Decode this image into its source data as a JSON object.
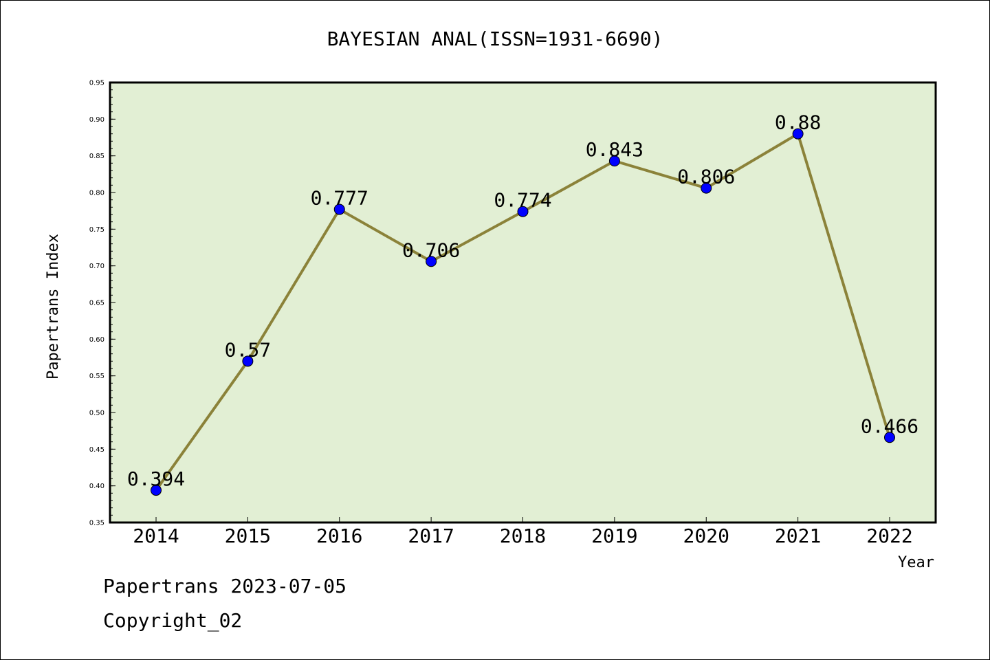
{
  "chart_data": {
    "type": "line",
    "title": "BAYESIAN ANAL(ISSN=1931-6690)",
    "xlabel": "Year",
    "ylabel": "Papertrans Index",
    "categories": [
      "2014",
      "2015",
      "2016",
      "2017",
      "2018",
      "2019",
      "2020",
      "2021",
      "2022"
    ],
    "series": [
      {
        "values": [
          0.394,
          0.57,
          0.777,
          0.706,
          0.774,
          0.843,
          0.806,
          0.88,
          0.466
        ],
        "labels": [
          "0.394",
          "0.57",
          "0.777",
          "0.706",
          "0.774",
          "0.843",
          "0.806",
          "0.88",
          "0.466"
        ]
      }
    ],
    "ylim": [
      0.35,
      0.95
    ],
    "yticks": [
      "0.35",
      "0.40",
      "0.45",
      "0.50",
      "0.55",
      "0.60",
      "0.65",
      "0.70",
      "0.75",
      "0.80",
      "0.85",
      "0.90",
      "0.95"
    ],
    "colors": {
      "plot_background": "#e2efd4",
      "line": "#8b8239",
      "marker": "#0000ff"
    }
  },
  "footer": {
    "line1": "Papertrans 2023-07-05",
    "line2": "Copyright_02"
  }
}
